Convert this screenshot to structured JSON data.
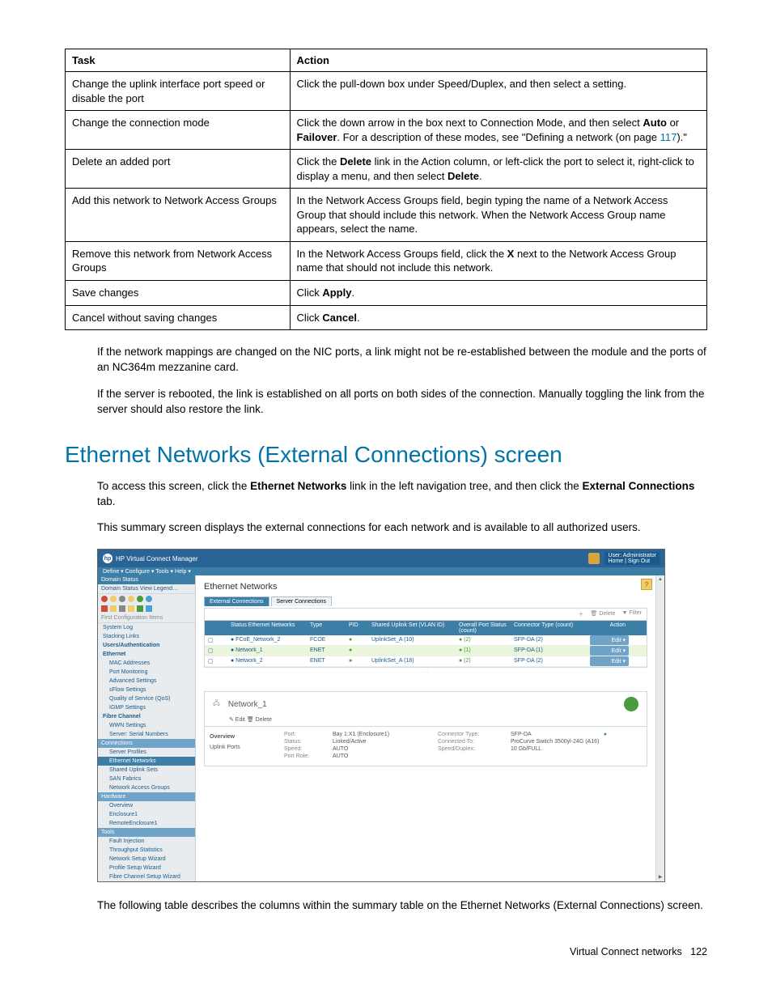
{
  "table": {
    "headers": {
      "task": "Task",
      "action": "Action"
    },
    "rows": [
      {
        "task": "Change the uplink interface port speed or disable the port",
        "action": {
          "parts": [
            "Click the pull-down box under Speed/Duplex, and then select a setting."
          ]
        }
      },
      {
        "task": "Change the connection mode",
        "action": {
          "parts": [
            "Click the down arrow in the box next to Connection Mode, and then select ",
            {
              "b": "Auto"
            },
            " or ",
            {
              "b": "Failover"
            },
            ". For a description of these modes, see \"Defining a network (on page ",
            {
              "link": "117"
            },
            ").\""
          ]
        }
      },
      {
        "task": "Delete an added port",
        "action": {
          "parts": [
            "Click the ",
            {
              "b": "Delete"
            },
            " link in the Action column, or left-click the port to select it, right-click to display a menu, and then select ",
            {
              "b": "Delete"
            },
            "."
          ]
        }
      },
      {
        "task": "Add this network to Network Access Groups",
        "action": {
          "parts": [
            "In the Network Access Groups field, begin typing the name of a Network Access Group that should include this network. When the Network Access Group name appears, select the name."
          ]
        }
      },
      {
        "task": "Remove this network from Network Access Groups",
        "action": {
          "parts": [
            "In the Network Access Groups field, click the ",
            {
              "b": "X"
            },
            " next to the Network Access Group name that should not include this network."
          ]
        }
      },
      {
        "task": "Save changes",
        "action": {
          "parts": [
            "Click ",
            {
              "b": "Apply"
            },
            "."
          ]
        }
      },
      {
        "task": "Cancel without saving changes",
        "action": {
          "parts": [
            "Click ",
            {
              "b": "Cancel"
            },
            "."
          ]
        }
      }
    ]
  },
  "paragraphs": {
    "p1": "If the network mappings are changed on the NIC ports, a link might not be re-established between the module and the ports of an NC364m mezzanine card.",
    "p2": "If the server is rebooted, the link is established on all ports on both sides of the connection. Manually toggling the link from the server should also restore the link."
  },
  "heading": "Ethernet Networks (External Connections) screen",
  "intro": {
    "p1": {
      "parts": [
        "To access this screen, click the ",
        {
          "b": "Ethernet Networks"
        },
        " link in the left navigation tree, and then click the ",
        {
          "b": "External Connections"
        },
        " tab."
      ]
    },
    "p2": "This summary screen displays the external connections for each network and is available to all authorized users."
  },
  "screenshot": {
    "title": "HP Virtual Connect Manager",
    "user_top": "User: Administrator",
    "user_links": "Home | Sign Out",
    "menubar": "Define ▾   Configure ▾   Tools ▾   Help ▾",
    "nav": {
      "domain_status_hdr": "Domain Status",
      "domain_status_link": "Domain Status   View Legend…",
      "icon_colors": [
        "#d14b3a",
        "#f0cd6b",
        "#888888",
        "#f0cd6b",
        "#4a9b3a",
        "#4aa3d1"
      ],
      "first_config": "First Configuration Items",
      "items": [
        "System Log",
        "Stacking Links",
        "Users/Authentication",
        "Ethernet",
        "MAC Addresses",
        "Port Monitoring",
        "Advanced Settings",
        "sFlow Settings",
        "Quality of Service (QoS)",
        "IGMP Settings",
        "Fibre Channel",
        "WWN Settings",
        "Server: Serial Numbers",
        "Connections",
        "Server Profiles",
        "Ethernet Networks",
        "Shared Uplink Sets",
        "SAN Fabrics",
        "Network Access Groups",
        "Hardware",
        "Overview",
        "Enclosure1",
        "RemoteEnclosure1",
        "Tools",
        "Fault Injection",
        "Throughput Statistics",
        "Network Setup Wizard",
        "Profile Setup Wizard",
        "Fibre Channel Setup Wizard"
      ],
      "headers_idx": {
        "Connections": "hdr2",
        "Hardware": "hdr2",
        "Tools": "hdr2"
      },
      "selected": "Ethernet Networks",
      "subs": [
        "MAC Addresses",
        "Port Monitoring",
        "Advanced Settings",
        "sFlow Settings",
        "Quality of Service (QoS)",
        "IGMP Settings",
        "WWN Settings",
        "Server: Serial Numbers",
        "Server Profiles",
        "Ethernet Networks",
        "Shared Uplink Sets",
        "SAN Fabrics",
        "Network Access Groups",
        "Overview",
        "Enclosure1",
        "RemoteEnclosure1",
        "Fault Injection",
        "Throughput Statistics",
        "Network Setup Wizard",
        "Profile Setup Wizard",
        "Fibre Channel Setup Wizard"
      ],
      "bold_groups": [
        "Users/Authentication",
        "Ethernet",
        "Fibre Channel"
      ]
    },
    "main": {
      "page_title": "Ethernet Networks",
      "tabs": {
        "t1": "External Connections",
        "t2": "Server Connections"
      },
      "tools": {
        "add": "＋",
        "delete": "🗑 Delete",
        "filter": "▼ Filter"
      },
      "grid_headers": [
        "",
        "Status  Ethernet Networks",
        "Type",
        "PID",
        "Shared Uplink Set (VLAN ID)",
        "Overall Port Status (count)",
        "Connector Type (count)",
        "Action"
      ],
      "grid_rows": [
        {
          "name": "FCoE_Network_2",
          "type": "FCOE",
          "pid": "●",
          "sus": "UplinkSet_A (10)",
          "ops": "● (2)",
          "ct": "SFP-DA (2)",
          "act": "Edit ▾",
          "ops_color": "#4a9b3a",
          "pid_color": "#4a9b3a"
        },
        {
          "name": "Network_1",
          "type": "ENET",
          "pid": "●",
          "sus": "",
          "ops": "● (1)",
          "ct": "SFP-DA (1)",
          "act": "Edit ▾",
          "ops_color": "#4a9b3a",
          "pid_color": "#4a9b3a",
          "row_bg": "#eaf5dc"
        },
        {
          "name": "Network_2",
          "type": "ENET",
          "pid": "●",
          "sus": "UplinkSet_A (18)",
          "ops": "● (2)",
          "ct": "SFP-DA (2)",
          "act": "Edit ▾",
          "ops_color": "#4a9b3a",
          "pid_color": "#4a9b3a"
        }
      ],
      "detail": {
        "name": "Network_1",
        "tools": "✎ Edit   🗑 Delete",
        "side_tabs": [
          "Overview",
          "Uplink Ports"
        ],
        "props": [
          {
            "l": "Port:",
            "lv": "Bay 1:X1 (Enclosure1)",
            "r": "Connector Type:",
            "rv": "SFP-DA"
          },
          {
            "l": "Status:",
            "lv": "Linked/Active",
            "r": "Connected To:",
            "rv": "ProCurve Switch 3500yl-24G (A16)"
          },
          {
            "l": "Speed:",
            "lv": "AUTO",
            "r": "Speed/Duplex:",
            "rv": "10 Gb/FULL"
          },
          {
            "l": "Port Role:",
            "lv": "AUTO",
            "r": "",
            "rv": ""
          }
        ]
      }
    }
  },
  "closing": "The following table describes the columns within the summary table on the Ethernet Networks (External Connections) screen.",
  "footer": {
    "section": "Virtual Connect networks",
    "page": "122"
  }
}
